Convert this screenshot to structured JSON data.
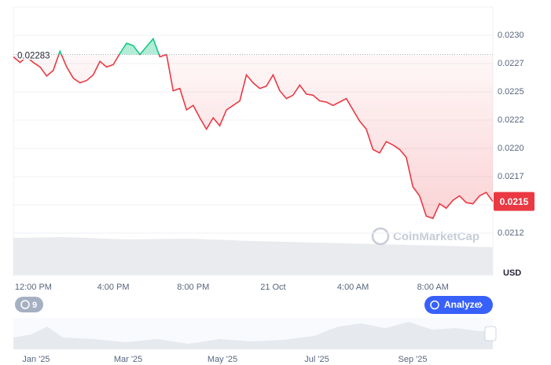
{
  "chart_data": {
    "type": "line",
    "categories": [
      null,
      null,
      null,
      "12:00 PM",
      null,
      null,
      null,
      null,
      null,
      null,
      null,
      null,
      null,
      null,
      null,
      "4:00 PM",
      null,
      null,
      null,
      null,
      null,
      null,
      null,
      null,
      null,
      null,
      null,
      "8:00 PM",
      null,
      null,
      null,
      null,
      null,
      null,
      null,
      null,
      null,
      null,
      null,
      "21 Oct",
      null,
      null,
      null,
      null,
      null,
      null,
      null,
      null,
      null,
      null,
      null,
      "4:00 AM",
      null,
      null,
      null,
      null,
      null,
      null,
      null,
      null,
      null,
      null,
      null,
      "8:00 AM",
      null,
      null,
      null,
      null,
      null,
      null,
      null,
      null,
      null
    ],
    "values": [
      0.02281,
      0.02276,
      0.02281,
      0.02276,
      0.02272,
      0.02264,
      0.02269,
      0.02286,
      0.02272,
      0.02262,
      0.02258,
      0.0226,
      0.02265,
      0.02277,
      0.02272,
      0.02274,
      0.02284,
      0.02293,
      0.02291,
      0.02283,
      0.0229,
      0.02297,
      0.02281,
      0.02283,
      0.02251,
      0.02253,
      0.02234,
      0.02238,
      0.02227,
      0.02217,
      0.02227,
      0.0222,
      0.02234,
      0.02238,
      0.02242,
      0.02265,
      0.02258,
      0.02253,
      0.02255,
      0.02265,
      0.02251,
      0.02244,
      0.02247,
      0.02256,
      0.02248,
      0.02247,
      0.02242,
      0.02241,
      0.02238,
      0.02241,
      0.02244,
      0.02234,
      0.02224,
      0.02217,
      0.02199,
      0.02196,
      0.02206,
      0.02203,
      0.02199,
      0.02192,
      0.02166,
      0.02158,
      0.0214,
      0.02138,
      0.02151,
      0.02147,
      0.02154,
      0.02158,
      0.02152,
      0.02151,
      0.02158,
      0.02161,
      0.02153
    ],
    "last_value_label": "0.0215",
    "reference_value": 0.02283,
    "color_up": "#16c784",
    "color_down": "#ea3943",
    "ylim": [
      0.02125,
      0.02325
    ],
    "yticks": [
      {
        "value": 0.02125,
        "label": "0.0212"
      },
      {
        "value": 0.0215,
        "label": "0.0215"
      },
      {
        "value": 0.02175,
        "label": "0.0217"
      },
      {
        "value": 0.022,
        "label": "0.0220"
      },
      {
        "value": 0.02225,
        "label": "0.0222"
      },
      {
        "value": 0.0225,
        "label": "0.0225"
      },
      {
        "value": 0.02275,
        "label": "0.0227"
      },
      {
        "value": 0.023,
        "label": "0.0230"
      }
    ],
    "grid": true,
    "currency": "USD",
    "watermark": "CoinMarketCap",
    "badge_count": "9",
    "analyze_button": "Analyze",
    "navigator_labels": [
      "Jan '25",
      "Mar '25",
      "May '25",
      "Jul '25",
      "Sep '25"
    ]
  }
}
